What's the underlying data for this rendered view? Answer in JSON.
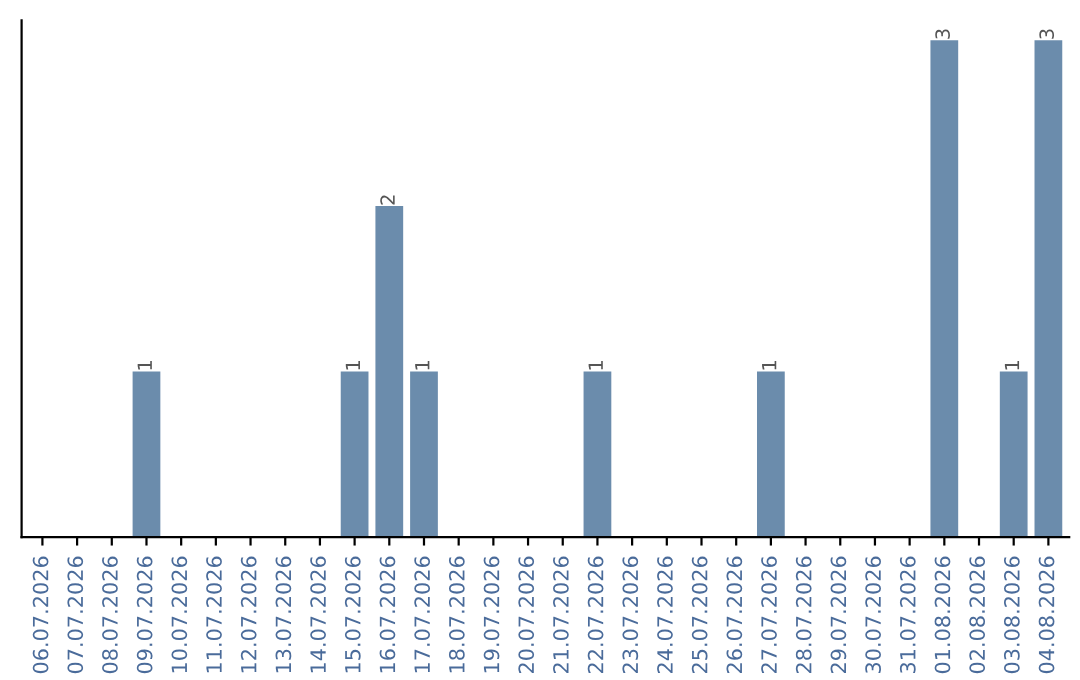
{
  "chart_data": {
    "type": "bar",
    "categories": [
      "06.07.2026",
      "07.07.2026",
      "08.07.2026",
      "09.07.2026",
      "10.07.2026",
      "11.07.2026",
      "12.07.2026",
      "13.07.2026",
      "14.07.2026",
      "15.07.2026",
      "16.07.2026",
      "17.07.2026",
      "18.07.2026",
      "19.07.2026",
      "20.07.2026",
      "21.07.2026",
      "22.07.2026",
      "23.07.2026",
      "24.07.2026",
      "25.07.2026",
      "26.07.2026",
      "27.07.2026",
      "28.07.2026",
      "29.07.2026",
      "30.07.2026",
      "31.07.2026",
      "01.08.2026",
      "02.08.2026",
      "03.08.2026",
      "04.08.2026"
    ],
    "values": [
      0,
      0,
      0,
      1,
      0,
      0,
      0,
      0,
      0,
      1,
      2,
      1,
      0,
      0,
      0,
      0,
      1,
      0,
      0,
      0,
      0,
      1,
      0,
      0,
      0,
      0,
      3,
      0,
      1,
      3
    ],
    "value_labels": [
      null,
      null,
      null,
      "1",
      null,
      null,
      null,
      null,
      null,
      "1",
      "2",
      "1",
      null,
      null,
      null,
      null,
      "1",
      null,
      null,
      null,
      null,
      "1",
      null,
      null,
      null,
      null,
      "3",
      null,
      "1",
      "3"
    ],
    "color": "#6b8cac",
    "grid": false,
    "legend": false,
    "tick_labels": "x"
  }
}
